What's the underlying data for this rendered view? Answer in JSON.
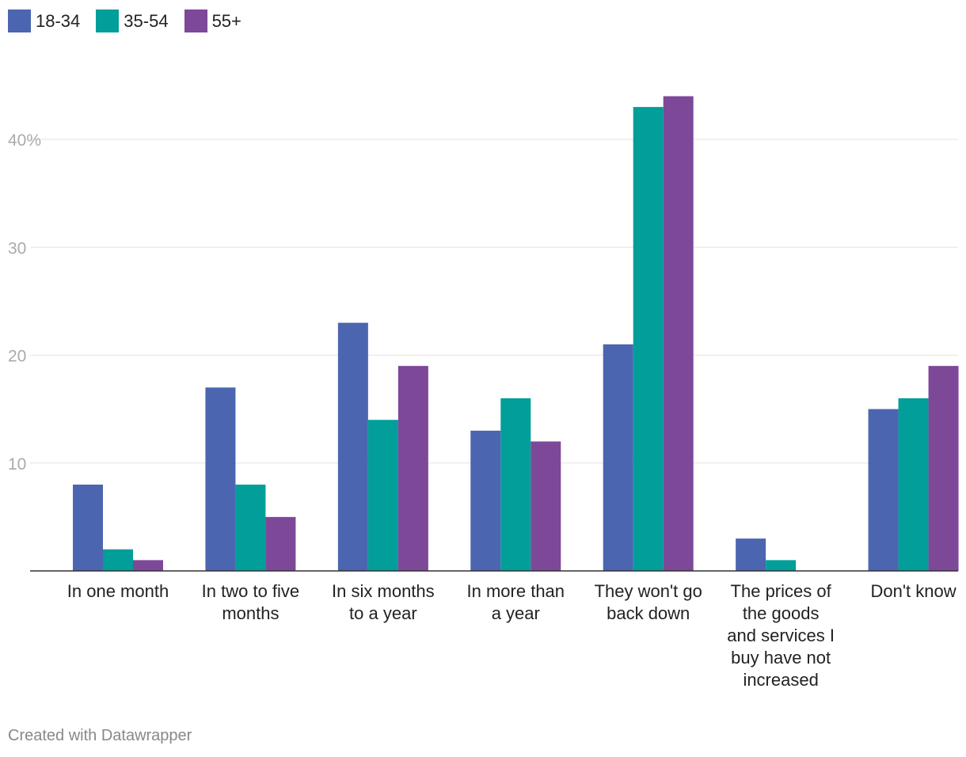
{
  "legend": [
    {
      "label": "18-34",
      "color": "#4c65b0"
    },
    {
      "label": "35-54",
      "color": "#029e9a"
    },
    {
      "label": "55+",
      "color": "#7e4899"
    }
  ],
  "footer": "Created with Datawrapper",
  "chart_data": {
    "type": "bar",
    "title": "",
    "xlabel": "",
    "ylabel": "",
    "ylim": [
      0,
      45
    ],
    "yticks": [
      10,
      20,
      30,
      40
    ],
    "ytick_labels": [
      "10",
      "20",
      "30",
      "40%"
    ],
    "categories": [
      [
        "In one month"
      ],
      [
        "In two to five",
        "months"
      ],
      [
        "In six months",
        "to a year"
      ],
      [
        "In more than",
        "a year"
      ],
      [
        "They won't go",
        "back down"
      ],
      [
        "The prices of",
        "the goods",
        "and services I",
        "buy have not",
        "increased"
      ],
      [
        "Don't know"
      ]
    ],
    "series": [
      {
        "name": "18-34",
        "color": "#4c65b0",
        "values": [
          8,
          17,
          23,
          13,
          21,
          3,
          15
        ]
      },
      {
        "name": "35-54",
        "color": "#029e9a",
        "values": [
          2,
          8,
          14,
          16,
          43,
          1,
          16
        ]
      },
      {
        "name": "55+",
        "color": "#7e4899",
        "values": [
          1,
          5,
          19,
          12,
          44,
          0,
          19
        ]
      }
    ]
  }
}
